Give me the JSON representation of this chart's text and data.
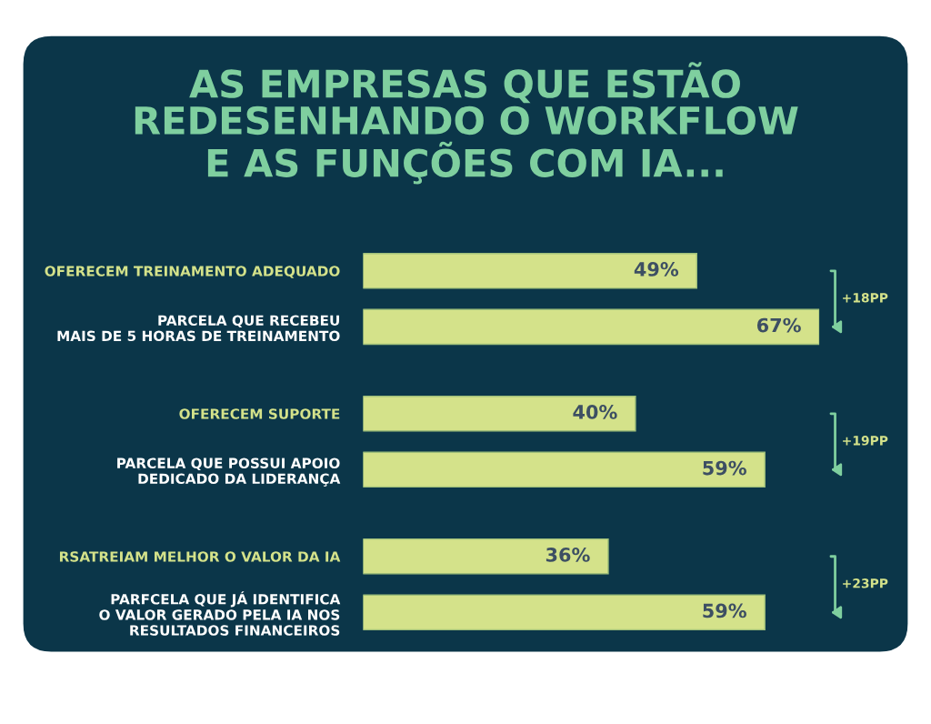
{
  "chart_data": {
    "type": "bar",
    "orientation": "horizontal",
    "title": "AS EMPRESAS QUE ESTÃO\nREDESENHANDO O WORKFLOW\nE AS FUNÇÕES COM IA...",
    "categories": [
      "OFERECEM TREINAMENTO ADEQUADO",
      "PARCELA QUE RECEBEU\nMAIS DE 5 HORAS DE TREINAMENTO",
      "OFERECEM SUPORTE",
      "PARCELA QUE POSSUI APOIO\nDEDICADO DA LIDERANÇA",
      "RSATREIAM MELHOR O VALOR DA IA",
      "PARFCELA QUE JÁ IDENTIFICA\nO VALOR GERADO PELA IA NOS\nRESULTADOS FINANCEIROS"
    ],
    "values": [
      49,
      67,
      40,
      59,
      36,
      59
    ],
    "color": "#d4e28a",
    "value_labels": [
      "49%",
      "67%",
      "40%",
      "59%",
      "36%",
      "59%"
    ],
    "annotations": [
      "+18PP",
      "+19PP",
      "+23PP"
    ],
    "tick_labels": "y"
  }
}
